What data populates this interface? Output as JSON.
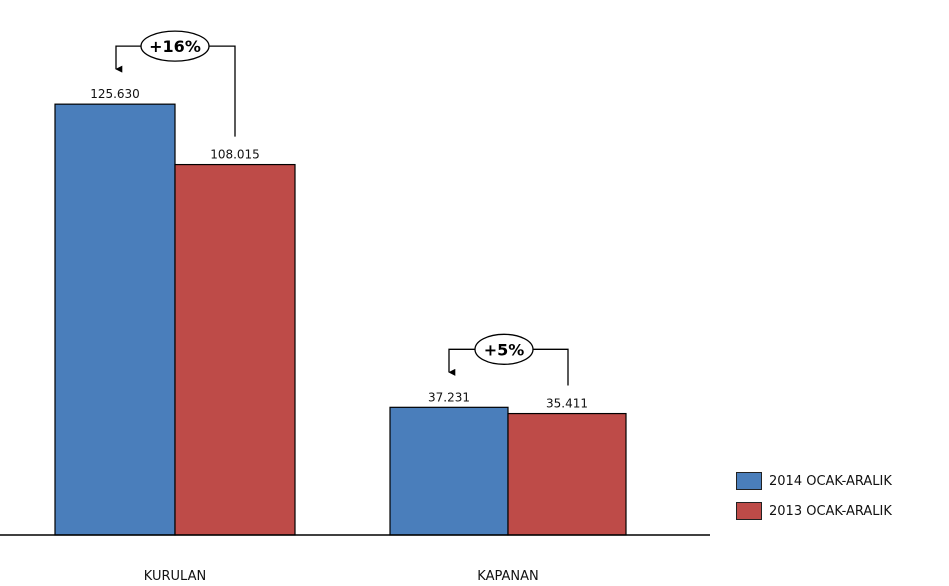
{
  "chart_data": {
    "type": "bar",
    "categories": [
      "KURULAN",
      "KAPANAN"
    ],
    "series": [
      {
        "name": "2014 OCAK-ARALIK",
        "values": [
          125630,
          37231
        ],
        "value_labels": [
          "125.630",
          "37.231"
        ],
        "color": "#4a7ebb"
      },
      {
        "name": "2013 OCAK-ARALIK",
        "values": [
          108015,
          35411
        ],
        "value_labels": [
          "108.015",
          "35.411"
        ],
        "color": "#be4b48"
      }
    ],
    "annotations": [
      {
        "category": "KURULAN",
        "text": "+16%"
      },
      {
        "category": "KAPANAN",
        "text": "+5%"
      }
    ],
    "ylim": [
      0,
      156000
    ],
    "legend_position": "right",
    "grid": false
  }
}
